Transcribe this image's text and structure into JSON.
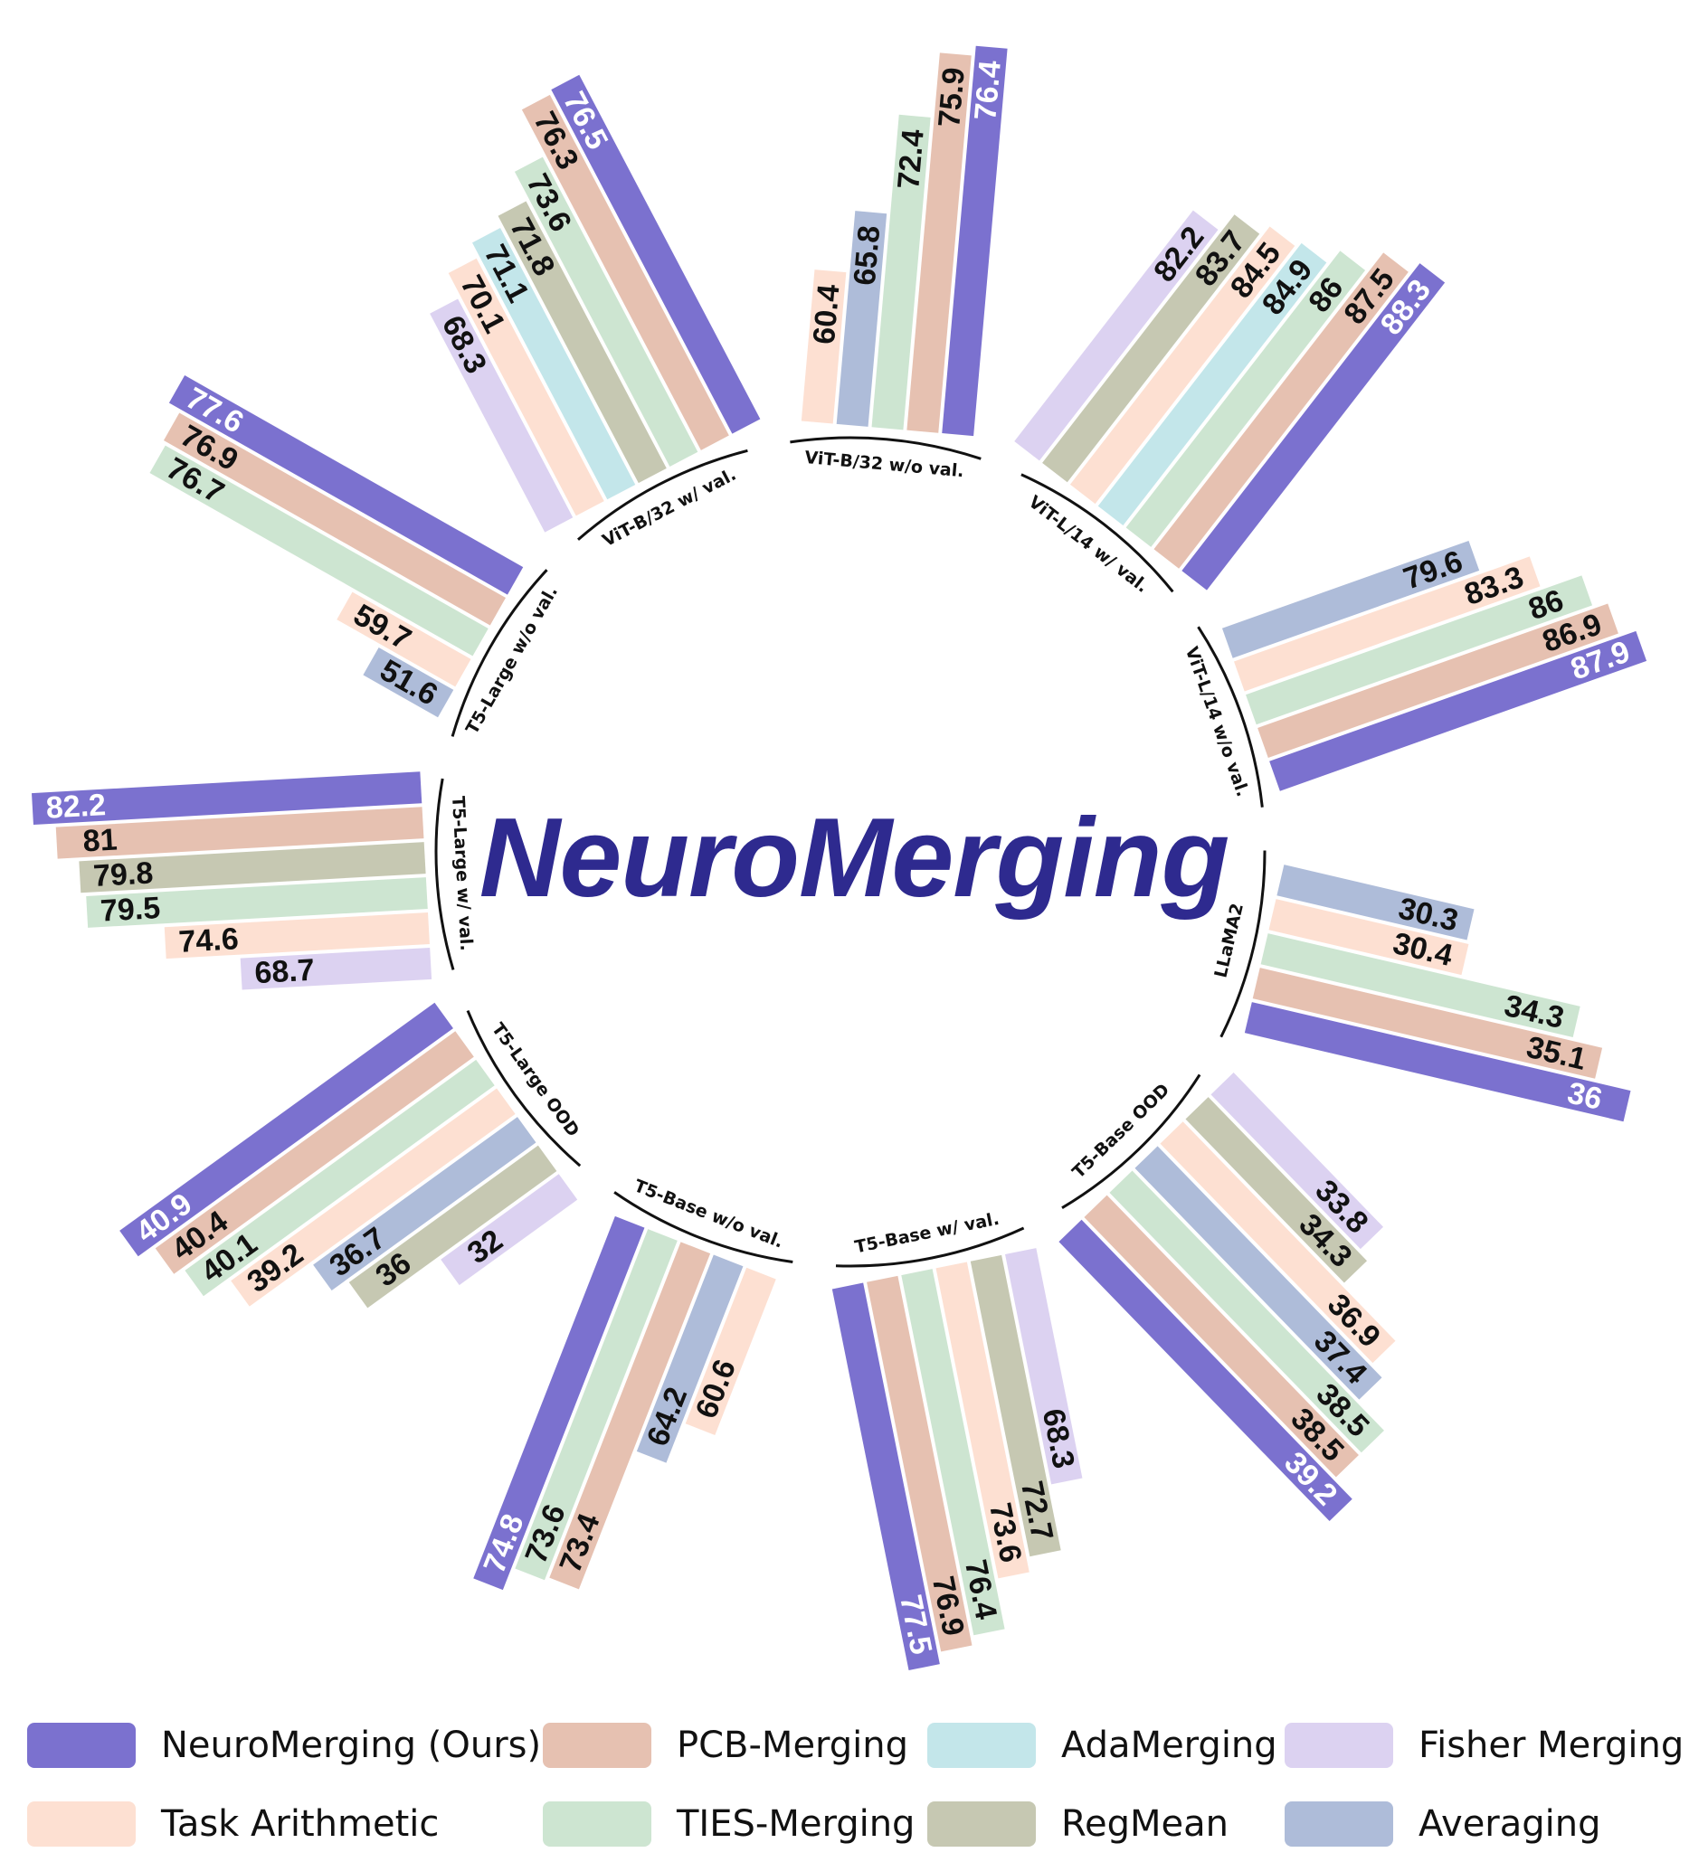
{
  "title": "NeuroMerging",
  "colors": {
    "NeuroMerging (Ours)": "#7b71cf",
    "PCB-Merging": "#e6c1b1",
    "AdaMerging": "#c3e6ea",
    "Fisher Merging": "#dcd2f1",
    "Task Arithmetic": "#fde0d2",
    "TIES-Merging": "#cde5d1",
    "RegMean": "#c6c8b2",
    "Averaging": "#aebcd9"
  },
  "legend": [
    "NeuroMerging (Ours)",
    "PCB-Merging",
    "AdaMerging",
    "Fisher Merging",
    "Task Arithmetic",
    "TIES-Merging",
    "RegMean",
    "Averaging"
  ],
  "chart_data": {
    "type": "bar",
    "layout": "radial",
    "groups": [
      {
        "name": "ViT-B/32 w/o val.",
        "bars": [
          {
            "method": "Task Arithmetic",
            "value": 60.4
          },
          {
            "method": "Averaging",
            "value": 65.8
          },
          {
            "method": "TIES-Merging",
            "value": 72.4
          },
          {
            "method": "PCB-Merging",
            "value": 75.9
          },
          {
            "method": "NeuroMerging (Ours)",
            "value": 76.4
          }
        ]
      },
      {
        "name": "ViT-L/14 w/ val.",
        "bars": [
          {
            "method": "Fisher Merging",
            "value": 82.2
          },
          {
            "method": "RegMean",
            "value": 83.7
          },
          {
            "method": "Task Arithmetic",
            "value": 84.5
          },
          {
            "method": "AdaMerging",
            "value": 84.9
          },
          {
            "method": "TIES-Merging",
            "value": 86
          },
          {
            "method": "PCB-Merging",
            "value": 87.5
          },
          {
            "method": "NeuroMerging (Ours)",
            "value": 88.3
          }
        ]
      },
      {
        "name": "ViT-L/14 w/o val.",
        "bars": [
          {
            "method": "Averaging",
            "value": 79.6
          },
          {
            "method": "Task Arithmetic",
            "value": 83.3
          },
          {
            "method": "TIES-Merging",
            "value": 86
          },
          {
            "method": "PCB-Merging",
            "value": 86.9
          },
          {
            "method": "NeuroMerging (Ours)",
            "value": 87.9
          }
        ]
      },
      {
        "name": "LLaMA2",
        "bars": [
          {
            "method": "Averaging",
            "value": 30.3
          },
          {
            "method": "Task Arithmetic",
            "value": 30.4
          },
          {
            "method": "TIES-Merging",
            "value": 34.3
          },
          {
            "method": "PCB-Merging",
            "value": 35.1
          },
          {
            "method": "NeuroMerging (Ours)",
            "value": 36
          }
        ]
      },
      {
        "name": "T5-Base OOD",
        "bars": [
          {
            "method": "Fisher Merging",
            "value": 33.8
          },
          {
            "method": "RegMean",
            "value": 34.3
          },
          {
            "method": "Task Arithmetic",
            "value": 36.9
          },
          {
            "method": "Averaging",
            "value": 37.4
          },
          {
            "method": "TIES-Merging",
            "value": 38.5
          },
          {
            "method": "PCB-Merging",
            "value": 38.5
          },
          {
            "method": "NeuroMerging (Ours)",
            "value": 39.2
          }
        ]
      },
      {
        "name": "T5-Base w/ val.",
        "bars": [
          {
            "method": "Fisher Merging",
            "value": 68.3
          },
          {
            "method": "RegMean",
            "value": 72.7
          },
          {
            "method": "Task Arithmetic",
            "value": 73.6
          },
          {
            "method": "TIES-Merging",
            "value": 76.4
          },
          {
            "method": "PCB-Merging",
            "value": 76.9
          },
          {
            "method": "NeuroMerging (Ours)",
            "value": 77.5
          }
        ]
      },
      {
        "name": "T5-Base w/o val.",
        "bars": [
          {
            "method": "Task Arithmetic",
            "value": 60.6
          },
          {
            "method": "Averaging",
            "value": 64.2
          },
          {
            "method": "PCB-Merging",
            "value": 73.4
          },
          {
            "method": "TIES-Merging",
            "value": 73.6
          },
          {
            "method": "NeuroMerging (Ours)",
            "value": 74.8
          }
        ]
      },
      {
        "name": "T5-Large OOD",
        "bars": [
          {
            "method": "Fisher Merging",
            "value": 32
          },
          {
            "method": "RegMean",
            "value": 36
          },
          {
            "method": "Averaging",
            "value": 36.7
          },
          {
            "method": "Task Arithmetic",
            "value": 39.2
          },
          {
            "method": "TIES-Merging",
            "value": 40.1
          },
          {
            "method": "PCB-Merging",
            "value": 40.4
          },
          {
            "method": "NeuroMerging (Ours)",
            "value": 40.9
          }
        ]
      },
      {
        "name": "T5-Large w/ val.",
        "bars": [
          {
            "method": "Fisher Merging",
            "value": 68.7
          },
          {
            "method": "Task Arithmetic",
            "value": 74.6
          },
          {
            "method": "TIES-Merging",
            "value": 79.5
          },
          {
            "method": "RegMean",
            "value": 79.8
          },
          {
            "method": "PCB-Merging",
            "value": 81
          },
          {
            "method": "NeuroMerging (Ours)",
            "value": 82.2
          }
        ]
      },
      {
        "name": "T5-Large w/o val.",
        "bars": [
          {
            "method": "Averaging",
            "value": 51.6
          },
          {
            "method": "Task Arithmetic",
            "value": 59.7
          },
          {
            "method": "TIES-Merging",
            "value": 76.7
          },
          {
            "method": "PCB-Merging",
            "value": 76.9
          },
          {
            "method": "NeuroMerging (Ours)",
            "value": 77.6
          }
        ]
      },
      {
        "name": "ViT-B/32 w/ val.",
        "bars": [
          {
            "method": "Fisher Merging",
            "value": 68.3
          },
          {
            "method": "Task Arithmetic",
            "value": 70.1
          },
          {
            "method": "AdaMerging",
            "value": 71.1
          },
          {
            "method": "RegMean",
            "value": 71.8
          },
          {
            "method": "TIES-Merging",
            "value": 73.6
          },
          {
            "method": "PCB-Merging",
            "value": 76.3
          },
          {
            "method": "NeuroMerging (Ours)",
            "value": 76.5
          }
        ]
      }
    ]
  }
}
